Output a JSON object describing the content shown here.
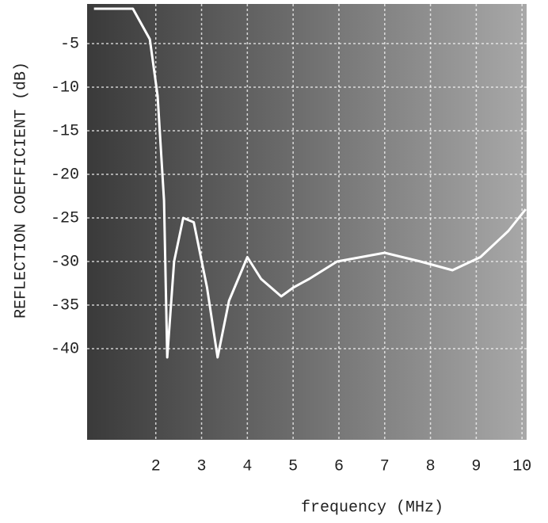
{
  "chart_data": {
    "type": "line",
    "y_label": "REFLECTION COEFFICIENT (dB)",
    "x_label": "frequency (MHz)",
    "xlim": [
      0.5,
      10.1
    ],
    "xticks": [
      2,
      3,
      4,
      5,
      6,
      7,
      8,
      9,
      10
    ],
    "ylim": [
      -50,
      0
    ],
    "yticks": [
      -5,
      -10,
      -15,
      -20,
      -25,
      -30,
      -35,
      -40
    ],
    "grid": true,
    "series": [
      {
        "color": "#ffffff",
        "x": [
          0.65,
          1.5,
          1.87,
          2.04,
          2.18,
          2.25,
          2.4,
          2.6,
          2.83,
          3.12,
          3.35,
          3.6,
          4.0,
          4.3,
          4.74,
          5.0,
          5.35,
          5.96,
          6.48,
          7.0,
          7.78,
          8.48,
          9.09,
          9.7,
          10.08
        ],
        "values": [
          -1,
          -1,
          -4.5,
          -11,
          -23,
          -41,
          -30,
          -25,
          -25.5,
          -33,
          -41,
          -34.5,
          -29.5,
          -32,
          -34,
          -33,
          -32,
          -30,
          -29.5,
          -29,
          -30,
          -31,
          -29.5,
          -26.5,
          -24
        ]
      }
    ]
  }
}
